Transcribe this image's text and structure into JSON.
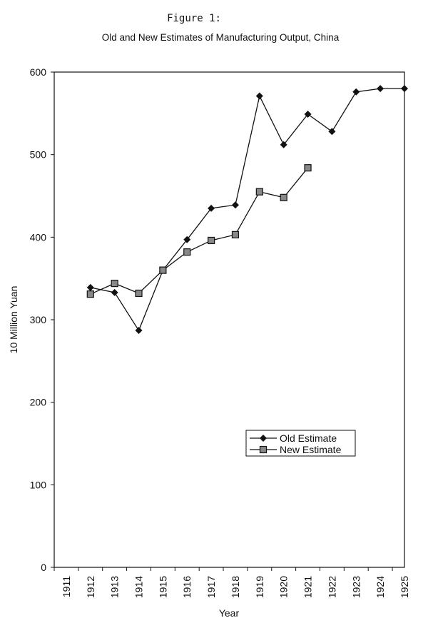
{
  "figure_label": "Figure 1:",
  "chart_data": {
    "type": "line",
    "title": "Old and New Estimates of Manufacturing Output, China",
    "xlabel": "Year",
    "ylabel": "10 Million Yuan",
    "categories": [
      "1911",
      "1912",
      "1913",
      "1914",
      "1915",
      "1916",
      "1917",
      "1918",
      "1919",
      "1920",
      "1921",
      "1922",
      "1923",
      "1924",
      "1925"
    ],
    "ylim": [
      0,
      600
    ],
    "yticks": [
      0,
      100,
      200,
      300,
      400,
      500,
      600
    ],
    "grid": false,
    "legend_position": "lower-right",
    "series": [
      {
        "name": "Old Estimate",
        "marker": "diamond",
        "color": "#111111",
        "values": [
          null,
          339,
          333,
          287,
          360,
          397,
          435,
          439,
          571,
          512,
          549,
          528,
          576,
          580,
          580
        ]
      },
      {
        "name": "New Estimate",
        "marker": "square",
        "color": "#111111",
        "values": [
          null,
          331,
          344,
          332,
          360,
          382,
          396,
          403,
          455,
          448,
          484,
          null,
          null,
          null,
          null
        ]
      }
    ]
  }
}
